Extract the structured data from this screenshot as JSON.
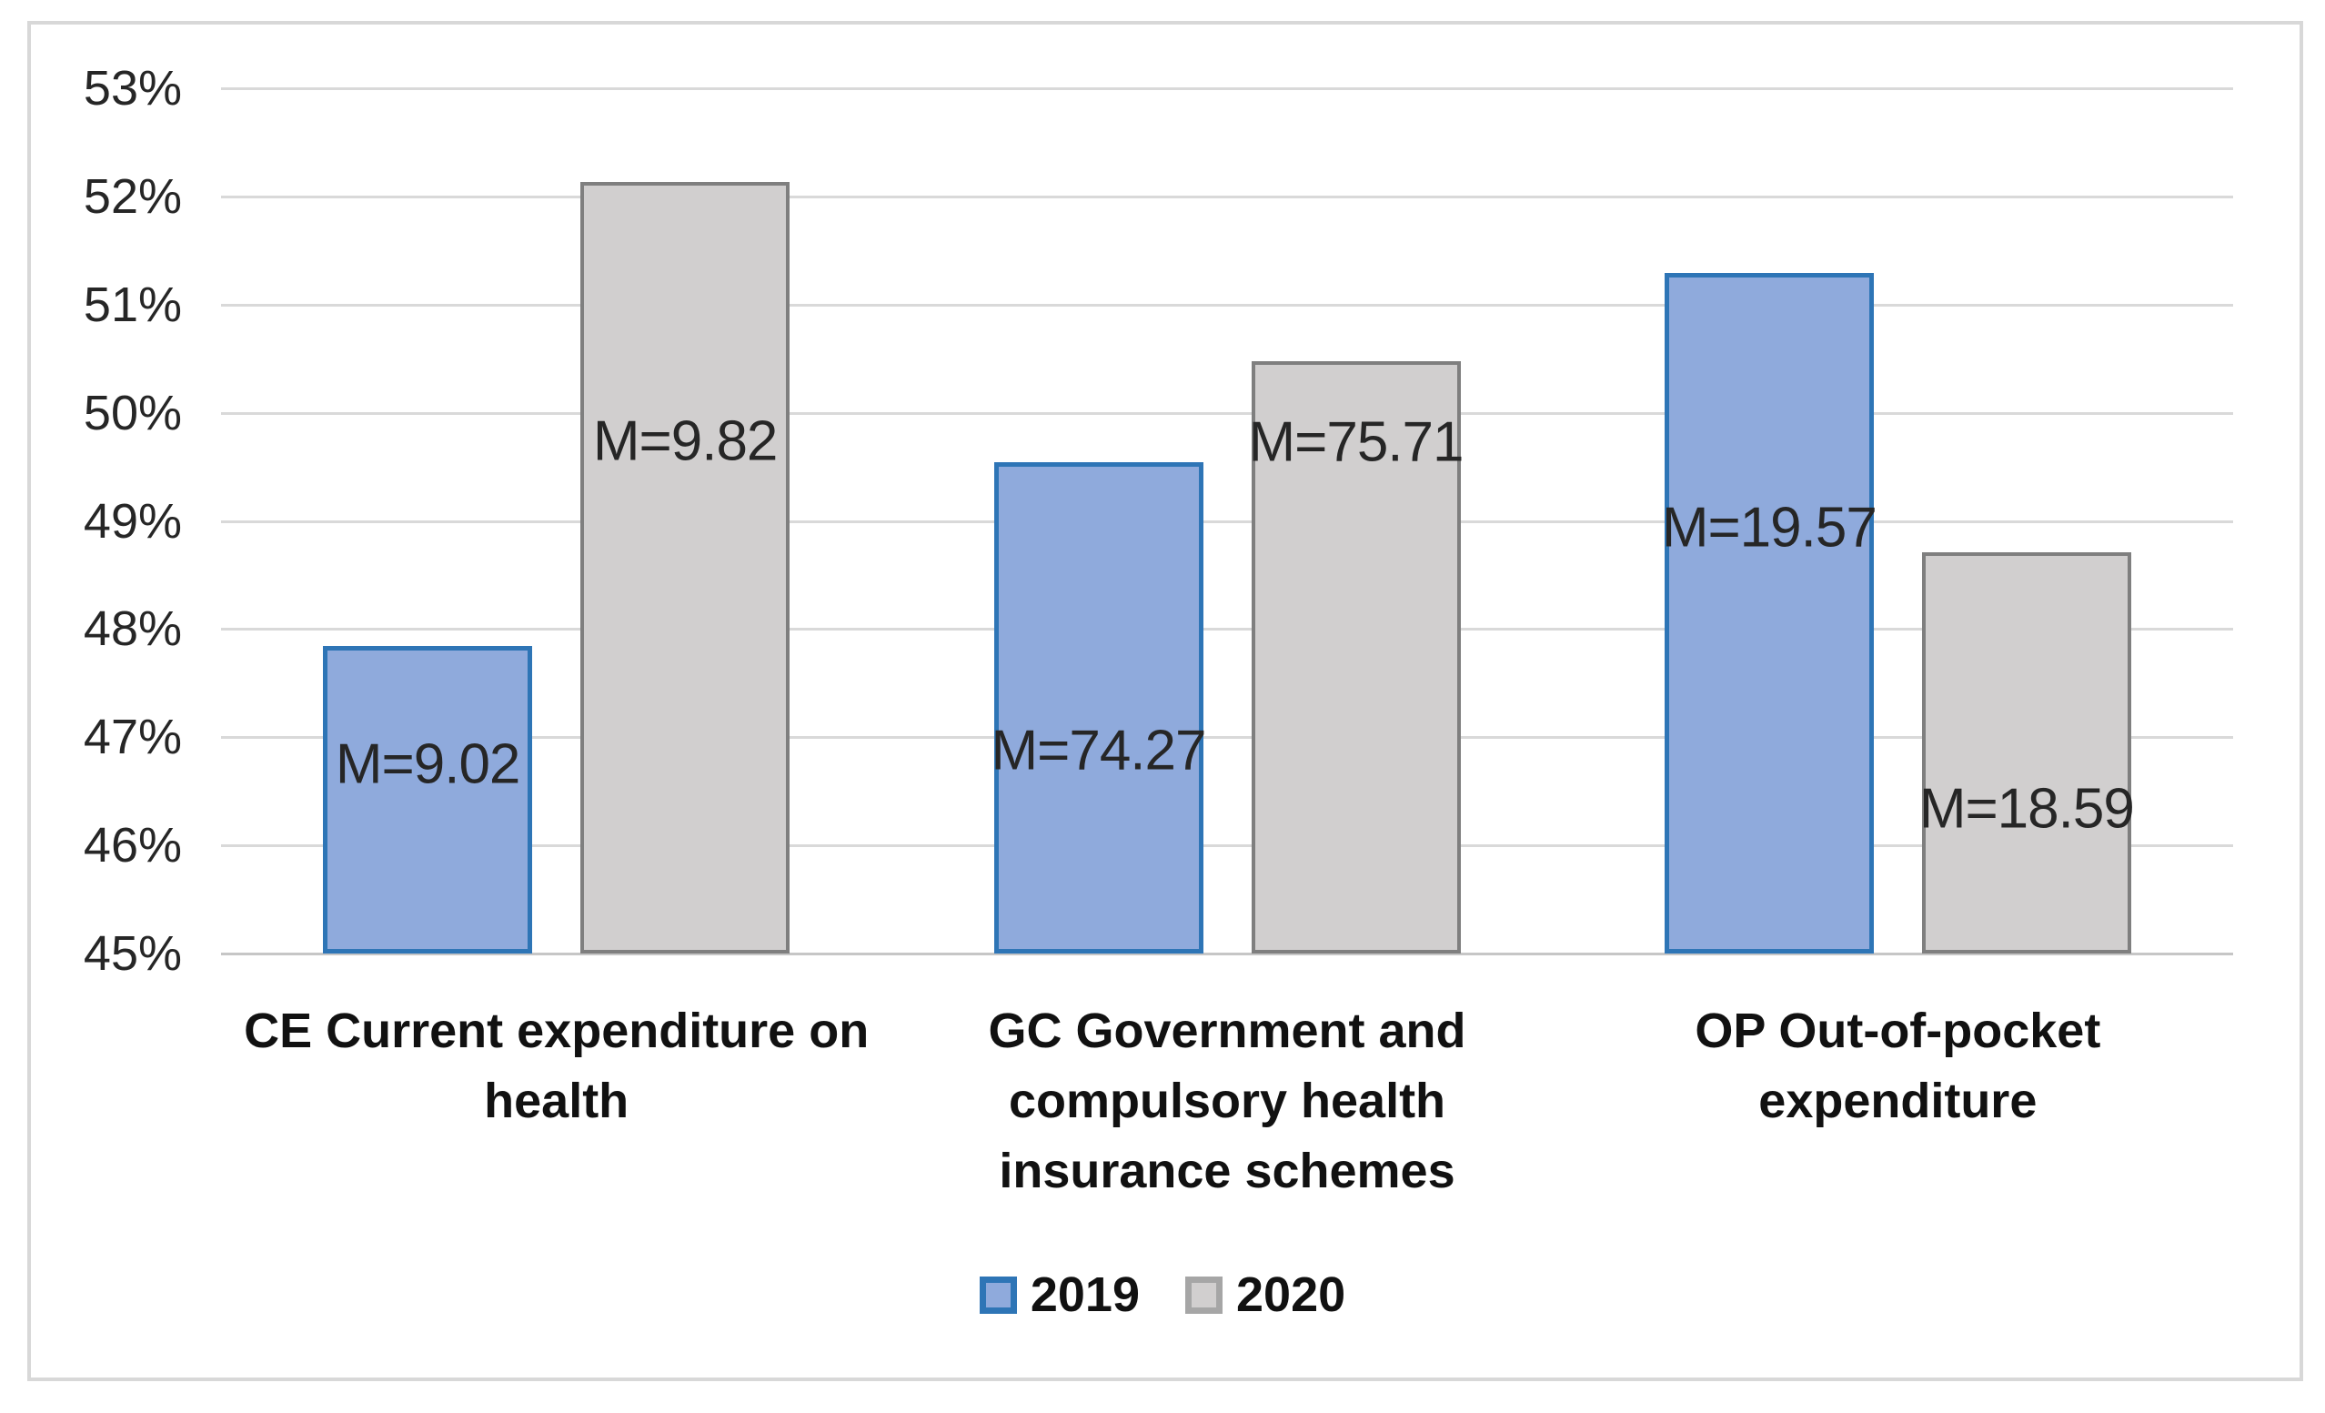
{
  "chart_data": {
    "type": "bar",
    "title": "",
    "categories": [
      {
        "key": "ce",
        "label": "CE Current expenditure on\nhealth"
      },
      {
        "key": "gc",
        "label": "GC Government and\ncompulsory health\ninsurance schemes"
      },
      {
        "key": "op",
        "label": "OP Out-of-pocket\nexpenditure"
      }
    ],
    "series": [
      {
        "name": "2019",
        "values": [
          47.84,
          49.54,
          51.29
        ],
        "data_labels": [
          "M=9.02",
          "M=74.27",
          "M=19.57"
        ],
        "data_label_y_values": [
          46.75,
          46.88,
          48.94
        ],
        "fill": "#8FAADC",
        "border": "#2E75B6",
        "legend_border": "#2E75B6"
      },
      {
        "name": "2020",
        "values": [
          52.13,
          50.48,
          48.71
        ],
        "data_labels": [
          "M=9.82",
          "M=75.71",
          "M=18.59"
        ],
        "data_label_y_values": [
          49.74,
          49.73,
          46.34
        ],
        "fill": "#D1CFCF",
        "border": "#7F7F7F",
        "legend_border": "#A6A6A6"
      }
    ],
    "y_axis": {
      "min": 45,
      "max": 53,
      "step": 1,
      "tick_labels": [
        "45%",
        "46%",
        "47%",
        "48%",
        "49%",
        "50%",
        "51%",
        "52%",
        "53%"
      ]
    },
    "grid": true,
    "legend_position": "bottom",
    "ylim": [
      45,
      53
    ],
    "colors": {
      "gridline": "#D9D9D9",
      "axis_line": "#C6C6C6",
      "chart_border": "#D8D8D8",
      "text": "#262626"
    }
  }
}
